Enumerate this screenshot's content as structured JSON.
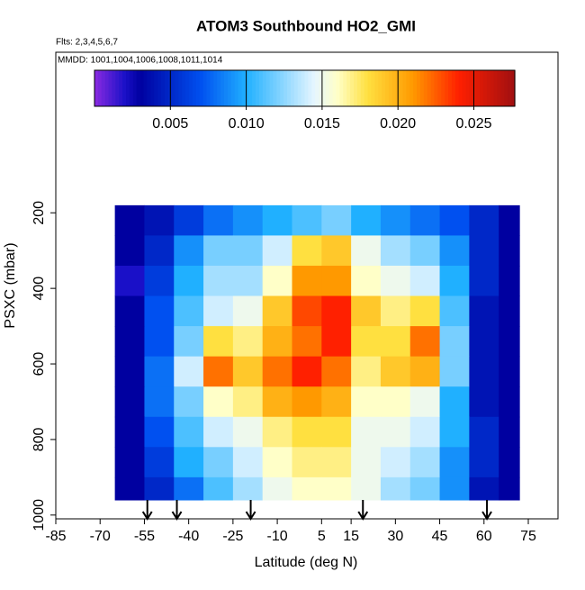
{
  "chart_data": {
    "type": "heatmap",
    "title": "ATOM3 Southbound HO2_GMI",
    "subtitle": "Flts: 2,3,4,5,6,7",
    "annotation": "MMDD: 1001,1004,1006,1008,1011,1014",
    "x_label": "Latitude (deg N)",
    "y_label": "PSXC (mbar)",
    "xlim": [
      -85,
      75
    ],
    "ylim": [
      1010,
      -225
    ],
    "xticks": [
      -85,
      -70,
      -55,
      -40,
      -25,
      -10,
      5,
      15,
      30,
      45,
      60,
      75
    ],
    "yticks": [
      200,
      400,
      600,
      800,
      1000
    ],
    "x_bins": [
      -65,
      -55,
      -45,
      -35,
      -25,
      -15,
      -5,
      5,
      15,
      25,
      35,
      45,
      55,
      65,
      72
    ],
    "y_bins": [
      180,
      260,
      340,
      420,
      500,
      580,
      660,
      740,
      820,
      900,
      960
    ],
    "values": [
      [
        0.003,
        0.004,
        0.006,
        0.008,
        0.009,
        0.01,
        0.011,
        0.012,
        0.01,
        0.009,
        0.008,
        0.007,
        0.005,
        0.003
      ],
      [
        0.003,
        0.005,
        0.009,
        0.012,
        0.012,
        0.014,
        0.018,
        0.019,
        0.015,
        0.013,
        0.012,
        0.009,
        0.005,
        0.003
      ],
      [
        0.002,
        0.006,
        0.01,
        0.013,
        0.013,
        0.016,
        0.021,
        0.021,
        0.016,
        0.015,
        0.014,
        0.01,
        0.005,
        0.003
      ],
      [
        0.003,
        0.007,
        0.011,
        0.014,
        0.015,
        0.019,
        0.023,
        0.024,
        0.019,
        0.017,
        0.018,
        0.011,
        0.004,
        0.003
      ],
      [
        0.003,
        0.007,
        0.012,
        0.018,
        0.017,
        0.02,
        0.022,
        0.024,
        0.018,
        0.018,
        0.022,
        0.012,
        0.004,
        0.003
      ],
      [
        0.003,
        0.008,
        0.014,
        0.022,
        0.019,
        0.022,
        0.024,
        0.022,
        0.017,
        0.019,
        0.02,
        0.012,
        0.004,
        0.003
      ],
      [
        0.003,
        0.008,
        0.012,
        0.016,
        0.017,
        0.02,
        0.021,
        0.02,
        0.016,
        0.016,
        0.015,
        0.01,
        0.004,
        0.003
      ],
      [
        0.003,
        0.007,
        0.011,
        0.014,
        0.015,
        0.017,
        0.018,
        0.018,
        0.015,
        0.015,
        0.014,
        0.01,
        0.005,
        0.003
      ],
      [
        0.003,
        0.006,
        0.01,
        0.012,
        0.014,
        0.016,
        0.017,
        0.017,
        0.015,
        0.014,
        0.013,
        0.009,
        0.005,
        0.003
      ],
      [
        0.003,
        0.005,
        0.008,
        0.011,
        0.013,
        0.015,
        0.016,
        0.016,
        0.015,
        0.013,
        0.012,
        0.009,
        0.004,
        0.003
      ]
    ],
    "colorbar_lim": [
      0,
      0.0277
    ],
    "colorbar_ticks": [
      0.005,
      {
        "value": 0.01,
        "label": "0.010"
      },
      0.015,
      {
        "value": 0.02,
        "label": "0.020"
      },
      0.025
    ],
    "colorscale": [
      [
        0,
        "#8a2be2"
      ],
      [
        0.002,
        "#1a10c8"
      ],
      [
        0.003,
        "#0000a0"
      ],
      [
        0.007,
        "#0050f0"
      ],
      [
        0.01,
        "#20b0ff"
      ],
      [
        0.0145,
        "#e6f6ff"
      ],
      [
        0.016,
        "#ffffc8"
      ],
      [
        0.018,
        "#ffe040"
      ],
      [
        0.021,
        "#ff9900"
      ],
      [
        0.024,
        "#ff2000"
      ],
      [
        0.0277,
        "#a01010"
      ]
    ],
    "arrows": [
      -54,
      -44,
      -19,
      19,
      61
    ]
  }
}
